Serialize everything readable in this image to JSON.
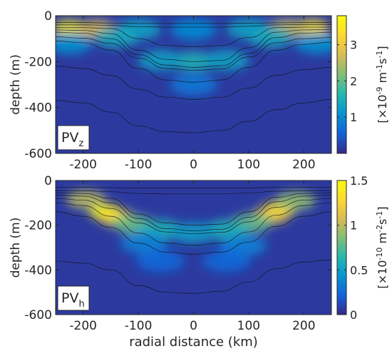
{
  "chart_data": [
    {
      "type": "heatmap",
      "panel_label_main": "PV",
      "panel_label_sub": "z",
      "xlabel": "",
      "ylabel": "depth (m)",
      "xlim": [
        -250,
        250
      ],
      "ylim": [
        -600,
        0
      ],
      "x_ticks": [
        -200,
        -100,
        0,
        100,
        200
      ],
      "y_ticks": [
        0,
        -200,
        -400,
        -600
      ],
      "colorbar": {
        "range": [
          0,
          3.8
        ],
        "ticks": [
          1,
          2,
          3
        ],
        "label_prefix": "[×10",
        "label_exp": "-9",
        "label_unit_a": " m",
        "label_unit_a_exp": "-1",
        "label_unit_b": "s",
        "label_unit_b_exp": "-1",
        "label_suffix": "]"
      },
      "contours": [
        {
          "x": [
            -250,
            -200,
            -150,
            -100,
            -50,
            0,
            50,
            100,
            150,
            200,
            250
          ],
          "y": [
            -30,
            -30,
            -32,
            -34,
            -34,
            -34,
            -34,
            -33,
            -31,
            -30,
            -30
          ]
        },
        {
          "x": [
            -250,
            -200,
            -150,
            -100,
            -50,
            0,
            50,
            100,
            150,
            200,
            250
          ],
          "y": [
            -40,
            -40,
            -42,
            -48,
            -50,
            -50,
            -50,
            -46,
            -40,
            -38,
            -38
          ]
        },
        {
          "x": [
            -250,
            -200,
            -150,
            -100,
            -50,
            0,
            50,
            100,
            150,
            200,
            250
          ],
          "y": [
            -52,
            -52,
            -56,
            -100,
            -130,
            -135,
            -130,
            -95,
            -52,
            -50,
            -50
          ]
        },
        {
          "x": [
            -250,
            -200,
            -150,
            -100,
            -50,
            0,
            50,
            100,
            150,
            200,
            250
          ],
          "y": [
            -62,
            -64,
            -78,
            -150,
            -190,
            -200,
            -195,
            -140,
            -72,
            -62,
            -60
          ]
        },
        {
          "x": [
            -250,
            -200,
            -150,
            -100,
            -50,
            0,
            50,
            100,
            150,
            200,
            250
          ],
          "y": [
            -72,
            -76,
            -100,
            -170,
            -215,
            -225,
            -218,
            -165,
            -95,
            -76,
            -72
          ]
        },
        {
          "x": [
            -250,
            -200,
            -150,
            -100,
            -50,
            0,
            50,
            100,
            150,
            200,
            250
          ],
          "y": [
            -92,
            -98,
            -120,
            -185,
            -230,
            -238,
            -232,
            -180,
            -118,
            -100,
            -95
          ]
        },
        {
          "x": [
            -250,
            -200,
            -150,
            -100,
            -50,
            0,
            50,
            100,
            150,
            200,
            250
          ],
          "y": [
            -110,
            -118,
            -150,
            -230,
            -280,
            -290,
            -280,
            -225,
            -150,
            -125,
            -115
          ]
        },
        {
          "x": [
            -250,
            -200,
            -150,
            -100,
            -50,
            0,
            50,
            100,
            150,
            200,
            250
          ],
          "y": [
            -220,
            -230,
            -260,
            -320,
            -355,
            -365,
            -355,
            -315,
            -260,
            -235,
            -225
          ]
        },
        {
          "x": [
            -250,
            -200,
            -150,
            -100,
            -50,
            0,
            50,
            100,
            150,
            200,
            250
          ],
          "y": [
            -370,
            -380,
            -420,
            -480,
            -505,
            -510,
            -500,
            -460,
            -410,
            -380,
            -365
          ]
        }
      ],
      "hotspots": [
        {
          "x": -225,
          "y": -55,
          "value": 3.6
        },
        {
          "x": -175,
          "y": -58,
          "value": 2.8
        },
        {
          "x": 215,
          "y": -52,
          "value": 3.4
        },
        {
          "x": 170,
          "y": -55,
          "value": 2.6
        },
        {
          "x": -100,
          "y": -60,
          "value": 1.3
        },
        {
          "x": 100,
          "y": -58,
          "value": 1.3
        },
        {
          "x": 0,
          "y": -60,
          "value": 1.0
        },
        {
          "x": -140,
          "y": -95,
          "value": 1.4
        },
        {
          "x": 140,
          "y": -95,
          "value": 1.4
        },
        {
          "x": 0,
          "y": -200,
          "value": 1.5
        },
        {
          "x": -60,
          "y": -195,
          "value": 1.3
        },
        {
          "x": 60,
          "y": -195,
          "value": 1.3
        },
        {
          "x": -225,
          "y": -120,
          "value": 1.1
        },
        {
          "x": 225,
          "y": -120,
          "value": 1.1
        },
        {
          "x": 0,
          "y": -300,
          "value": 0.8
        }
      ]
    },
    {
      "type": "heatmap",
      "panel_label_main": "PV",
      "panel_label_sub": "h",
      "xlabel": "radial distance (km)",
      "ylabel": "depth (m)",
      "xlim": [
        -250,
        250
      ],
      "ylim": [
        -600,
        0
      ],
      "x_ticks": [
        -200,
        -100,
        0,
        100,
        200
      ],
      "y_ticks": [
        0,
        -200,
        -400,
        -600
      ],
      "colorbar": {
        "range": [
          0,
          1.5
        ],
        "ticks": [
          0,
          0.5,
          1,
          1.5
        ],
        "label_prefix": "[×10",
        "label_exp": "-10",
        "label_unit_a": " m",
        "label_unit_a_exp": "-2",
        "label_unit_b": "s",
        "label_unit_b_exp": "-1",
        "label_suffix": "]"
      },
      "contours": [
        {
          "x": [
            -250,
            -200,
            -150,
            -100,
            -50,
            0,
            50,
            100,
            150,
            200,
            250
          ],
          "y": [
            -30,
            -30,
            -32,
            -34,
            -34,
            -34,
            -34,
            -33,
            -31,
            -30,
            -30
          ]
        },
        {
          "x": [
            -250,
            -200,
            -150,
            -100,
            -50,
            0,
            50,
            100,
            150,
            200,
            250
          ],
          "y": [
            -45,
            -46,
            -50,
            -58,
            -60,
            -60,
            -60,
            -56,
            -48,
            -46,
            -45
          ]
        },
        {
          "x": [
            -250,
            -200,
            -150,
            -100,
            -50,
            0,
            50,
            100,
            150,
            200,
            250
          ],
          "y": [
            -55,
            -58,
            -80,
            -150,
            -190,
            -200,
            -195,
            -140,
            -75,
            -58,
            -55
          ]
        },
        {
          "x": [
            -250,
            -200,
            -150,
            -100,
            -50,
            0,
            50,
            100,
            150,
            200,
            250
          ],
          "y": [
            -65,
            -70,
            -100,
            -170,
            -215,
            -225,
            -218,
            -165,
            -95,
            -70,
            -65
          ]
        },
        {
          "x": [
            -250,
            -200,
            -150,
            -100,
            -50,
            0,
            50,
            100,
            150,
            200,
            250
          ],
          "y": [
            -80,
            -88,
            -125,
            -190,
            -230,
            -238,
            -232,
            -185,
            -120,
            -88,
            -80
          ]
        },
        {
          "x": [
            -250,
            -200,
            -150,
            -100,
            -50,
            0,
            50,
            100,
            150,
            200,
            250
          ],
          "y": [
            -100,
            -112,
            -160,
            -235,
            -280,
            -290,
            -280,
            -230,
            -155,
            -112,
            -100
          ]
        },
        {
          "x": [
            -250,
            -200,
            -150,
            -100,
            -50,
            0,
            50,
            100,
            150,
            200,
            250
          ],
          "y": [
            -140,
            -160,
            -210,
            -280,
            -320,
            -330,
            -320,
            -275,
            -205,
            -160,
            -140
          ]
        },
        {
          "x": [
            -250,
            -200,
            -150,
            -100,
            -50,
            0,
            50,
            100,
            150,
            200,
            250
          ],
          "y": [
            -360,
            -370,
            -400,
            -470,
            -500,
            -505,
            -495,
            -455,
            -395,
            -365,
            -355
          ]
        }
      ],
      "hotspots": [
        {
          "x": -160,
          "y": -140,
          "value": 1.5
        },
        {
          "x": -140,
          "y": -165,
          "value": 1.3
        },
        {
          "x": -195,
          "y": -85,
          "value": 1.0
        },
        {
          "x": -110,
          "y": -195,
          "value": 0.8
        },
        {
          "x": 155,
          "y": -130,
          "value": 1.4
        },
        {
          "x": 140,
          "y": -155,
          "value": 1.2
        },
        {
          "x": 185,
          "y": -90,
          "value": 0.9
        },
        {
          "x": 105,
          "y": -190,
          "value": 0.8
        },
        {
          "x": -60,
          "y": -220,
          "value": 0.6
        },
        {
          "x": 60,
          "y": -220,
          "value": 0.6
        },
        {
          "x": 0,
          "y": -235,
          "value": 0.5
        },
        {
          "x": -90,
          "y": -280,
          "value": 0.35
        },
        {
          "x": 90,
          "y": -290,
          "value": 0.35
        },
        {
          "x": -60,
          "y": -360,
          "value": 0.25
        },
        {
          "x": 60,
          "y": -360,
          "value": 0.25
        }
      ]
    }
  ]
}
